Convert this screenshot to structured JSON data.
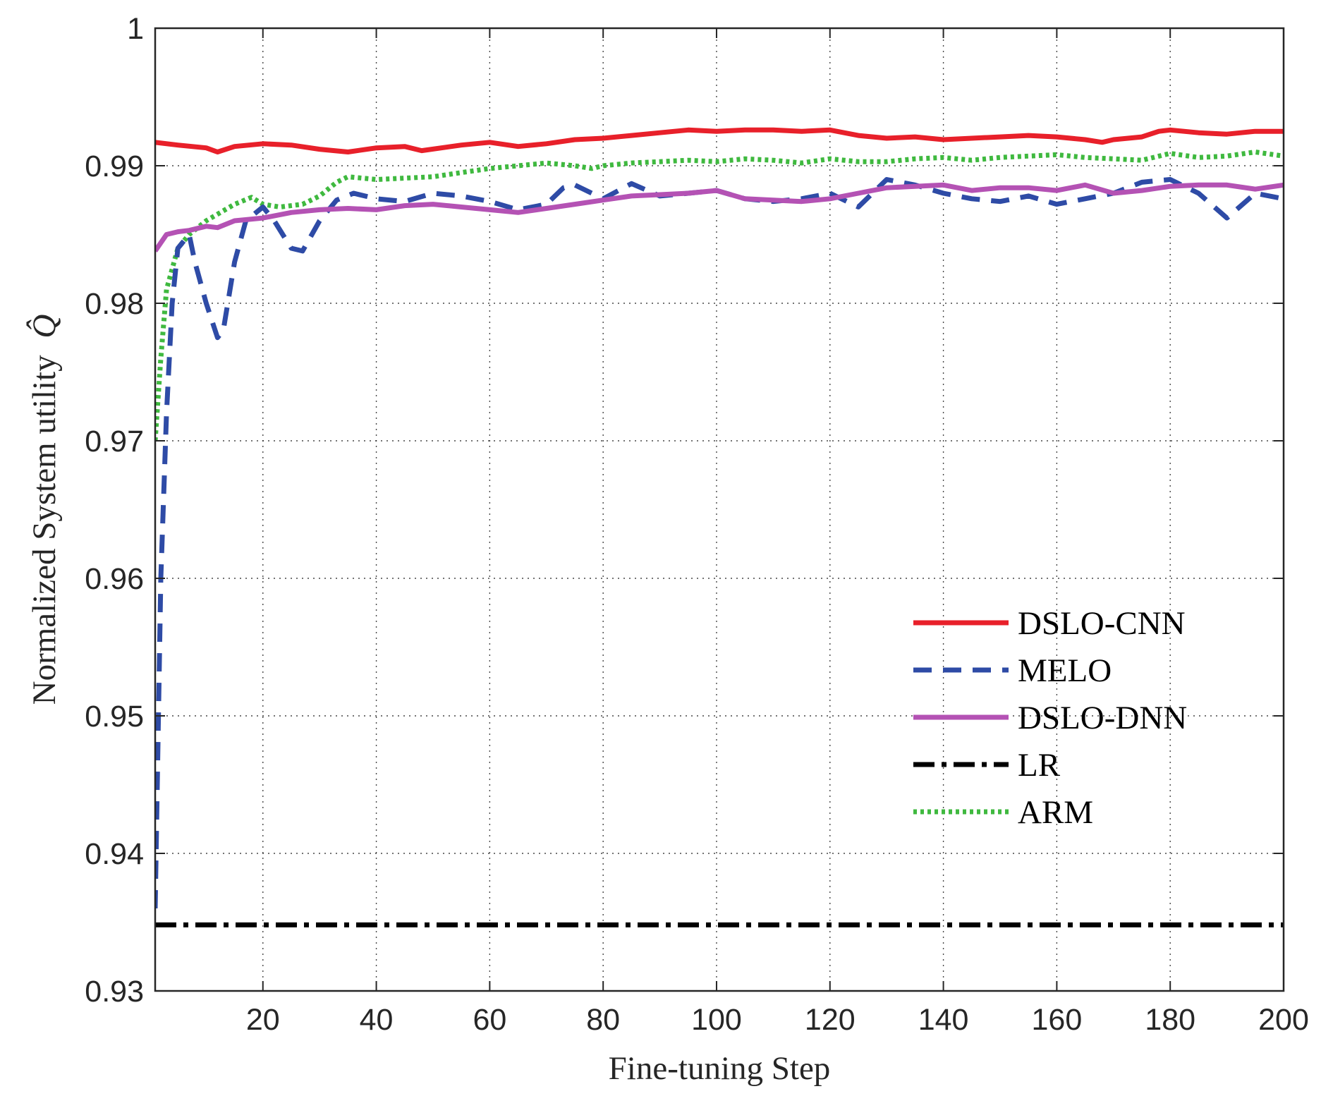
{
  "chart_data": {
    "type": "line",
    "title": "",
    "xlabel": "Fine-tuning Step",
    "ylabel": "Normalized System utility",
    "ylabel_symbol": "Q̂",
    "xlim": [
      1,
      200
    ],
    "ylim": [
      0.93,
      1.0
    ],
    "xticks": [
      20,
      40,
      60,
      80,
      100,
      120,
      140,
      160,
      180,
      200
    ],
    "yticks": [
      0.93,
      0.94,
      0.95,
      0.96,
      0.97,
      0.98,
      0.99,
      1
    ],
    "xtick_labels": [
      "20",
      "40",
      "60",
      "80",
      "100",
      "120",
      "140",
      "160",
      "180",
      "200"
    ],
    "ytick_labels": [
      "0.93",
      "0.94",
      "0.95",
      "0.96",
      "0.97",
      "0.98",
      "0.99",
      "1"
    ],
    "grid": true,
    "legend_position": "center-right",
    "series": [
      {
        "name": "DSLO-CNN",
        "color": "#e8202a",
        "style": "solid",
        "points": [
          [
            1,
            0.9917
          ],
          [
            5,
            0.9915
          ],
          [
            10,
            0.9913
          ],
          [
            12,
            0.991
          ],
          [
            15,
            0.9914
          ],
          [
            20,
            0.9916
          ],
          [
            25,
            0.9915
          ],
          [
            30,
            0.9912
          ],
          [
            35,
            0.991
          ],
          [
            40,
            0.9913
          ],
          [
            45,
            0.9914
          ],
          [
            48,
            0.9911
          ],
          [
            55,
            0.9915
          ],
          [
            60,
            0.9917
          ],
          [
            65,
            0.9914
          ],
          [
            70,
            0.9916
          ],
          [
            75,
            0.9919
          ],
          [
            80,
            0.992
          ],
          [
            85,
            0.9922
          ],
          [
            90,
            0.9924
          ],
          [
            95,
            0.9926
          ],
          [
            100,
            0.9925
          ],
          [
            105,
            0.9926
          ],
          [
            110,
            0.9926
          ],
          [
            115,
            0.9925
          ],
          [
            120,
            0.9926
          ],
          [
            125,
            0.9922
          ],
          [
            130,
            0.992
          ],
          [
            135,
            0.9921
          ],
          [
            140,
            0.9919
          ],
          [
            145,
            0.992
          ],
          [
            150,
            0.9921
          ],
          [
            155,
            0.9922
          ],
          [
            160,
            0.9921
          ],
          [
            165,
            0.9919
          ],
          [
            168,
            0.9917
          ],
          [
            170,
            0.9919
          ],
          [
            175,
            0.9921
          ],
          [
            178,
            0.9925
          ],
          [
            180,
            0.9926
          ],
          [
            185,
            0.9924
          ],
          [
            190,
            0.9923
          ],
          [
            195,
            0.9925
          ],
          [
            200,
            0.9925
          ]
        ]
      },
      {
        "name": "MELO",
        "color": "#2e4ba6",
        "style": "dashed",
        "points": [
          [
            1,
            0.936
          ],
          [
            2,
            0.96
          ],
          [
            3,
            0.972
          ],
          [
            4,
            0.98
          ],
          [
            5,
            0.984
          ],
          [
            7,
            0.985
          ],
          [
            8,
            0.983
          ],
          [
            10,
            0.98
          ],
          [
            12,
            0.9775
          ],
          [
            13,
            0.978
          ],
          [
            15,
            0.983
          ],
          [
            17,
            0.986
          ],
          [
            20,
            0.987
          ],
          [
            22,
            0.986
          ],
          [
            25,
            0.984
          ],
          [
            27,
            0.9838
          ],
          [
            30,
            0.986
          ],
          [
            33,
            0.9875
          ],
          [
            36,
            0.988
          ],
          [
            40,
            0.9876
          ],
          [
            45,
            0.9874
          ],
          [
            50,
            0.988
          ],
          [
            55,
            0.9878
          ],
          [
            60,
            0.9874
          ],
          [
            65,
            0.9868
          ],
          [
            70,
            0.9872
          ],
          [
            73,
            0.9884
          ],
          [
            75,
            0.9886
          ],
          [
            80,
            0.9876
          ],
          [
            85,
            0.9887
          ],
          [
            90,
            0.9878
          ],
          [
            95,
            0.988
          ],
          [
            100,
            0.9882
          ],
          [
            105,
            0.9876
          ],
          [
            110,
            0.9874
          ],
          [
            115,
            0.9876
          ],
          [
            120,
            0.988
          ],
          [
            125,
            0.987
          ],
          [
            130,
            0.989
          ],
          [
            135,
            0.9886
          ],
          [
            140,
            0.988
          ],
          [
            145,
            0.9876
          ],
          [
            150,
            0.9874
          ],
          [
            155,
            0.9878
          ],
          [
            160,
            0.9872
          ],
          [
            165,
            0.9876
          ],
          [
            170,
            0.988
          ],
          [
            175,
            0.9888
          ],
          [
            180,
            0.989
          ],
          [
            185,
            0.988
          ],
          [
            190,
            0.9862
          ],
          [
            195,
            0.988
          ],
          [
            200,
            0.9876
          ]
        ]
      },
      {
        "name": "DSLO-DNN",
        "color": "#b452b4",
        "style": "solid",
        "points": [
          [
            1,
            0.9838
          ],
          [
            3,
            0.985
          ],
          [
            5,
            0.9852
          ],
          [
            7,
            0.9853
          ],
          [
            10,
            0.9856
          ],
          [
            12,
            0.9855
          ],
          [
            15,
            0.986
          ],
          [
            20,
            0.9862
          ],
          [
            25,
            0.9866
          ],
          [
            30,
            0.9868
          ],
          [
            35,
            0.9869
          ],
          [
            40,
            0.9868
          ],
          [
            45,
            0.9871
          ],
          [
            50,
            0.9872
          ],
          [
            55,
            0.987
          ],
          [
            60,
            0.9868
          ],
          [
            65,
            0.9866
          ],
          [
            70,
            0.9869
          ],
          [
            75,
            0.9872
          ],
          [
            80,
            0.9875
          ],
          [
            85,
            0.9878
          ],
          [
            90,
            0.9879
          ],
          [
            95,
            0.988
          ],
          [
            100,
            0.9882
          ],
          [
            105,
            0.9876
          ],
          [
            110,
            0.9875
          ],
          [
            115,
            0.9874
          ],
          [
            120,
            0.9876
          ],
          [
            125,
            0.988
          ],
          [
            130,
            0.9884
          ],
          [
            135,
            0.9885
          ],
          [
            140,
            0.9886
          ],
          [
            145,
            0.9882
          ],
          [
            150,
            0.9884
          ],
          [
            155,
            0.9884
          ],
          [
            160,
            0.9882
          ],
          [
            165,
            0.9886
          ],
          [
            170,
            0.988
          ],
          [
            175,
            0.9882
          ],
          [
            180,
            0.9885
          ],
          [
            185,
            0.9886
          ],
          [
            190,
            0.9886
          ],
          [
            195,
            0.9883
          ],
          [
            200,
            0.9886
          ]
        ]
      },
      {
        "name": "LR",
        "color": "#000000",
        "style": "dashdot",
        "points": [
          [
            1,
            0.9348
          ],
          [
            200,
            0.9348
          ]
        ]
      },
      {
        "name": "ARM",
        "color": "#3fb93f",
        "style": "dotted",
        "points": [
          [
            1,
            0.97
          ],
          [
            2,
            0.976
          ],
          [
            3,
            0.981
          ],
          [
            5,
            0.984
          ],
          [
            7,
            0.985
          ],
          [
            10,
            0.986
          ],
          [
            15,
            0.9872
          ],
          [
            18,
            0.9877
          ],
          [
            20,
            0.9872
          ],
          [
            23,
            0.987
          ],
          [
            27,
            0.9872
          ],
          [
            30,
            0.9878
          ],
          [
            33,
            0.9888
          ],
          [
            35,
            0.9892
          ],
          [
            40,
            0.989
          ],
          [
            45,
            0.9891
          ],
          [
            50,
            0.9892
          ],
          [
            55,
            0.9895
          ],
          [
            60,
            0.9898
          ],
          [
            65,
            0.99
          ],
          [
            70,
            0.9902
          ],
          [
            75,
            0.99
          ],
          [
            78,
            0.9898
          ],
          [
            80,
            0.99
          ],
          [
            85,
            0.9902
          ],
          [
            90,
            0.9903
          ],
          [
            95,
            0.9904
          ],
          [
            100,
            0.9903
          ],
          [
            105,
            0.9905
          ],
          [
            110,
            0.9904
          ],
          [
            115,
            0.9902
          ],
          [
            120,
            0.9905
          ],
          [
            125,
            0.9903
          ],
          [
            130,
            0.9903
          ],
          [
            135,
            0.9905
          ],
          [
            140,
            0.9906
          ],
          [
            145,
            0.9904
          ],
          [
            150,
            0.9906
          ],
          [
            155,
            0.9907
          ],
          [
            160,
            0.9908
          ],
          [
            165,
            0.9906
          ],
          [
            170,
            0.9905
          ],
          [
            175,
            0.9904
          ],
          [
            180,
            0.9909
          ],
          [
            185,
            0.9906
          ],
          [
            190,
            0.9907
          ],
          [
            195,
            0.991
          ],
          [
            200,
            0.9907
          ]
        ]
      }
    ]
  }
}
